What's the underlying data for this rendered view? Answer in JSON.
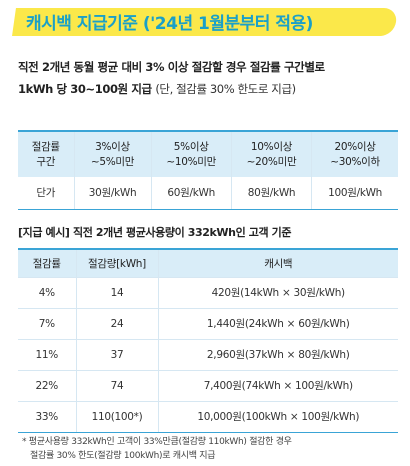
{
  "header": {
    "title": "캐시백 지급기준 ('24년 1월분부터 적용)"
  },
  "intro": {
    "line1": "직전 2개년 동월 평균 대비 3% 이상 절감할 경우 절감률 구간별로",
    "line2_bold": "1kWh 당 30~100원 지급",
    "line2_light": "(단, 절감률 30% 한도로 지급)"
  },
  "rate_table": {
    "header_label_line1": "절감률",
    "header_label_line2": "구간",
    "tiers": [
      {
        "line1": "3%이상",
        "line2": "~5%미만"
      },
      {
        "line1": "5%이상",
        "line2": "~10%미만"
      },
      {
        "line1": "10%이상",
        "line2": "~20%미만"
      },
      {
        "line1": "20%이상",
        "line2": "~30%이하"
      }
    ],
    "unit_label": "단가",
    "unit_prices": [
      "30원/kWh",
      "60원/kWh",
      "80원/kWh",
      "100원/kWh"
    ]
  },
  "example": {
    "title": "[지급 예시] 직전 2개년 평균사용량이 332kWh인 고객 기준",
    "headers": [
      "절감률",
      "절감량[kWh]",
      "캐시백"
    ],
    "rows": [
      [
        "4%",
        "14",
        "420원(14kWh × 30원/kWh)"
      ],
      [
        "7%",
        "24",
        "1,440원(24kWh × 60원/kWh)"
      ],
      [
        "11%",
        "37",
        "2,960원(37kWh × 80원/kWh)"
      ],
      [
        "22%",
        "74",
        "7,400원(74kWh × 100원/kWh)"
      ],
      [
        "33%",
        "110(100*)",
        "10,000원(100kWh × 100원/kWh)"
      ]
    ]
  },
  "footnote": {
    "line1": "* 평균사용량 332kWh인 고객이 33%만큼(절감량 110kWh) 절감한 경우",
    "line2": "절감률 30% 한도(절감량 100kWh)로 캐시백 지급"
  },
  "colors": {
    "title": "#1aa0c8",
    "highlight": "#fbe84a",
    "table_header_bg": "#d9edf8",
    "table_rule": "#3aa4d6"
  }
}
